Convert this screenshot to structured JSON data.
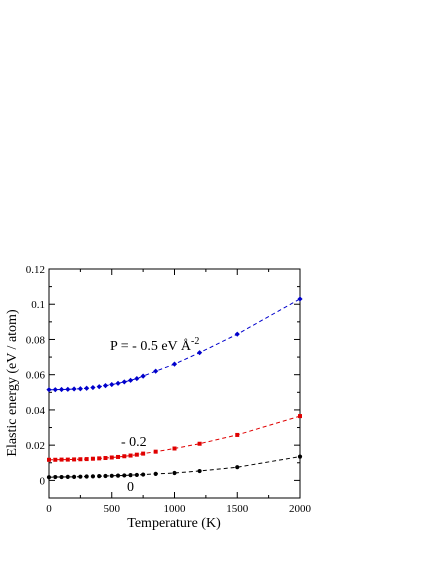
{
  "chart_data": {
    "type": "line",
    "xlabel": "Temperature  (K)",
    "ylabel": "Elastic  energy  (eV / atom)",
    "xlim": [
      0,
      2000
    ],
    "ylim": [
      -0.01,
      0.12
    ],
    "x_ticks": [
      0,
      500,
      1000,
      1500,
      2000
    ],
    "x_tick_labels": [
      "0",
      "500",
      "1000",
      "1500",
      "2000"
    ],
    "y_ticks": [
      0,
      0.02,
      0.04,
      0.06,
      0.08,
      0.1,
      0.12
    ],
    "y_tick_labels": [
      "0",
      "0.02",
      "0.04",
      "0.06",
      "0.08",
      "0.1",
      "0.12"
    ],
    "grid": false,
    "series": [
      {
        "name": "P = - 0.5 eV Å-2",
        "label_main": "P = - 0.5 eV Å",
        "label_sup": "-2",
        "color": "#0000cc",
        "marker": "diamond",
        "x": [
          0,
          50,
          100,
          150,
          200,
          250,
          300,
          350,
          400,
          450,
          500,
          550,
          600,
          650,
          700,
          750,
          850,
          1000,
          1200,
          1500,
          2000
        ],
        "y": [
          0.0515,
          0.0515,
          0.0516,
          0.0517,
          0.0519,
          0.052,
          0.0523,
          0.0527,
          0.0532,
          0.0538,
          0.0544,
          0.0551,
          0.0559,
          0.0568,
          0.0578,
          0.0592,
          0.062,
          0.066,
          0.0725,
          0.083,
          0.103
        ]
      },
      {
        "name": "- 0.2",
        "label_main": "- 0.2",
        "label_sup": "",
        "color": "#e00000",
        "marker": "square",
        "x": [
          0,
          50,
          100,
          150,
          200,
          250,
          300,
          350,
          400,
          450,
          500,
          550,
          600,
          650,
          700,
          750,
          850,
          1000,
          1200,
          1500,
          2000
        ],
        "y": [
          0.0117,
          0.0117,
          0.0118,
          0.0118,
          0.0119,
          0.012,
          0.0121,
          0.0123,
          0.0125,
          0.0127,
          0.013,
          0.0133,
          0.0137,
          0.0141,
          0.0146,
          0.0152,
          0.0163,
          0.0181,
          0.0208,
          0.0258,
          0.0365
        ]
      },
      {
        "name": "0",
        "label_main": "0",
        "label_sup": "",
        "color": "#000000",
        "marker": "circle",
        "x": [
          0,
          50,
          100,
          150,
          200,
          250,
          300,
          350,
          400,
          450,
          500,
          550,
          600,
          650,
          700,
          750,
          850,
          1000,
          1200,
          1500,
          2000
        ],
        "y": [
          0.0018,
          0.0019,
          0.0019,
          0.002,
          0.002,
          0.0021,
          0.0022,
          0.0023,
          0.0024,
          0.0025,
          0.0026,
          0.0027,
          0.0028,
          0.003,
          0.0031,
          0.0033,
          0.0037,
          0.0042,
          0.0053,
          0.0075,
          0.0135
        ]
      }
    ]
  }
}
